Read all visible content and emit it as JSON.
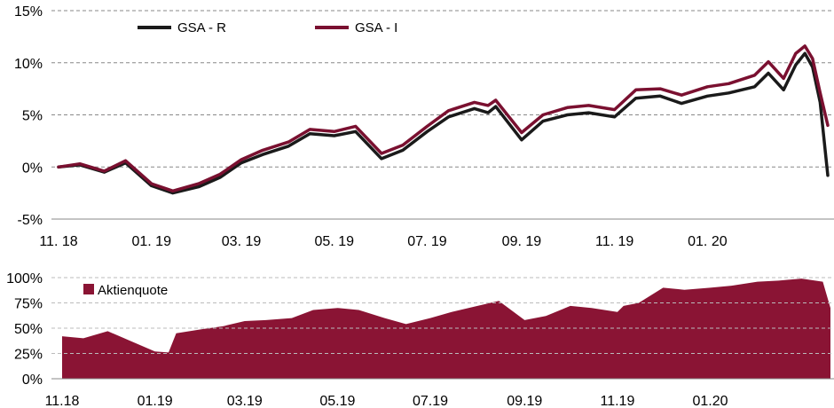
{
  "chart_data": [
    {
      "type": "line",
      "ylim": [
        -5,
        15
      ],
      "y_ticks": [
        -5,
        0,
        5,
        10,
        15
      ],
      "y_tick_labels": [
        "-5%",
        "0%",
        "5%",
        "10%",
        "15%"
      ],
      "x_tick_labels": [
        "11. 18",
        "01. 19",
        "03. 19",
        "05. 19",
        "07. 19",
        "09. 19",
        "11. 19",
        "01. 20"
      ],
      "grid": "horizontal dashed",
      "legend_position": "top-left",
      "x": [
        "2018-11-01",
        "2018-11-15",
        "2018-12-01",
        "2018-12-15",
        "2019-01-01",
        "2019-01-15",
        "2019-02-01",
        "2019-02-15",
        "2019-03-01",
        "2019-03-15",
        "2019-04-01",
        "2019-04-15",
        "2019-05-01",
        "2019-05-15",
        "2019-06-01",
        "2019-06-15",
        "2019-07-01",
        "2019-07-15",
        "2019-08-01",
        "2019-08-10",
        "2019-08-15",
        "2019-09-01",
        "2019-09-15",
        "2019-10-01",
        "2019-10-15",
        "2019-11-01",
        "2019-11-15",
        "2019-12-01",
        "2019-12-15",
        "2020-01-01",
        "2020-01-15",
        "2020-02-01",
        "2020-02-10",
        "2020-02-20",
        "2020-02-28",
        "2020-03-05",
        "2020-03-10",
        "2020-03-15",
        "2020-03-20"
      ],
      "series": [
        {
          "name": "GSA - R",
          "color": "#1a1a1a",
          "values": [
            0.0,
            0.2,
            -0.5,
            0.4,
            -1.8,
            -2.5,
            -1.9,
            -1.0,
            0.4,
            1.2,
            2.0,
            3.2,
            3.0,
            3.4,
            0.8,
            1.6,
            3.4,
            4.8,
            5.6,
            5.2,
            5.8,
            2.6,
            4.4,
            5.0,
            5.2,
            4.8,
            6.6,
            6.8,
            6.1,
            6.8,
            7.1,
            7.7,
            9.0,
            7.4,
            9.8,
            10.9,
            9.6,
            6.2,
            -0.8
          ]
        },
        {
          "name": "GSA - I",
          "color": "#7a1030",
          "values": [
            0.0,
            0.3,
            -0.4,
            0.6,
            -1.6,
            -2.3,
            -1.6,
            -0.7,
            0.7,
            1.6,
            2.4,
            3.6,
            3.4,
            3.9,
            1.3,
            2.1,
            3.9,
            5.4,
            6.2,
            5.9,
            6.4,
            3.3,
            5.0,
            5.7,
            5.9,
            5.5,
            7.4,
            7.5,
            6.9,
            7.7,
            8.0,
            8.8,
            10.1,
            8.5,
            10.9,
            11.6,
            10.4,
            7.1,
            4.0
          ]
        }
      ]
    },
    {
      "type": "area",
      "ylim": [
        0,
        100
      ],
      "y_ticks": [
        0,
        25,
        50,
        75,
        100
      ],
      "y_tick_labels": [
        "0%",
        "25%",
        "50%",
        "75%",
        "100%"
      ],
      "x_tick_labels": [
        "11.18",
        "01.19",
        "03.19",
        "05.19",
        "07.19",
        "09.19",
        "11.19",
        "01.20"
      ],
      "grid": "horizontal dashed",
      "legend_position": "top-left",
      "x": [
        "2018-11-01",
        "2018-11-15",
        "2018-12-01",
        "2018-12-15",
        "2019-01-01",
        "2019-01-10",
        "2019-01-15",
        "2019-02-01",
        "2019-02-15",
        "2019-03-01",
        "2019-03-15",
        "2019-04-01",
        "2019-04-15",
        "2019-05-01",
        "2019-05-15",
        "2019-06-01",
        "2019-06-15",
        "2019-07-01",
        "2019-07-15",
        "2019-08-01",
        "2019-08-15",
        "2019-09-01",
        "2019-09-15",
        "2019-10-01",
        "2019-10-15",
        "2019-11-01",
        "2019-11-05",
        "2019-11-15",
        "2019-12-01",
        "2019-12-15",
        "2020-01-01",
        "2020-01-15",
        "2020-02-01",
        "2020-02-15",
        "2020-03-01",
        "2020-03-15",
        "2020-03-20"
      ],
      "series": [
        {
          "name": "Aktienquote",
          "color": "#8a1434",
          "values": [
            42,
            40,
            47,
            38,
            27,
            26,
            45,
            49,
            52,
            57,
            58,
            60,
            68,
            70,
            68,
            60,
            54,
            60,
            66,
            72,
            77,
            58,
            62,
            72,
            70,
            66,
            72,
            75,
            90,
            88,
            90,
            92,
            96,
            97,
            99,
            96,
            70
          ]
        }
      ]
    }
  ]
}
